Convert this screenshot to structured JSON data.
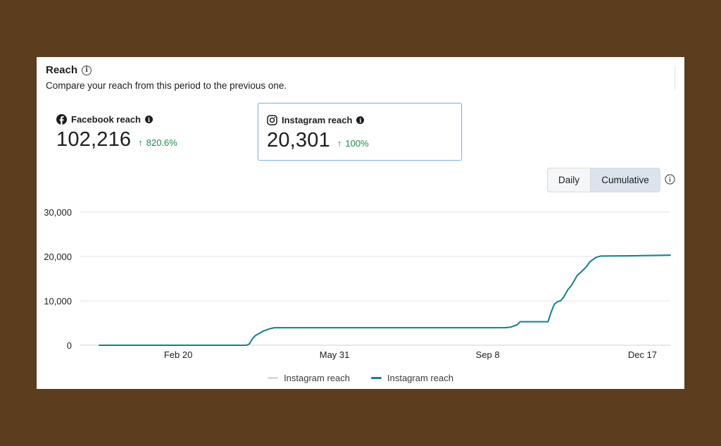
{
  "header": {
    "title": "Reach",
    "subtitle": "Compare your reach from this period to the previous one."
  },
  "metrics": {
    "facebook": {
      "label": "Facebook reach",
      "value": "102,216",
      "change": "820.6%",
      "icon": "facebook-icon"
    },
    "instagram": {
      "label": "Instagram reach",
      "value": "20,301",
      "change": "100%",
      "icon": "instagram-icon"
    }
  },
  "toggle": {
    "daily_label": "Daily",
    "cumulative_label": "Cumulative",
    "selected": "Cumulative"
  },
  "colors": {
    "line": "#13808a",
    "previous": "#d8dadf",
    "positive": "#1f8a4c",
    "selected_border": "#8ab3e8"
  },
  "chart_data": {
    "type": "line",
    "y_tick_labels": [
      "30,000",
      "20,000",
      "10,000",
      "0"
    ],
    "y_ticks": [
      30000,
      20000,
      10000,
      0
    ],
    "ylim": [
      0,
      30000
    ],
    "x_tick_labels": [
      "Feb 20",
      "May 31",
      "Sep 8",
      "Dec 17"
    ],
    "x_ticks": [
      51,
      152,
      251,
      351
    ],
    "xlim": [
      0,
      369
    ],
    "grid": true,
    "legend_position": "bottom",
    "series": [
      {
        "name": "Instagram reach",
        "role": "previous",
        "values": []
      },
      {
        "name": "Instagram reach",
        "role": "current",
        "points": [
          [
            0,
            0
          ],
          [
            95,
            0
          ],
          [
            97,
            300
          ],
          [
            99,
            1500
          ],
          [
            101,
            2200
          ],
          [
            103,
            2600
          ],
          [
            106,
            3200
          ],
          [
            110,
            3700
          ],
          [
            113,
            3950
          ],
          [
            150,
            3950
          ],
          [
            200,
            3950
          ],
          [
            262,
            3950
          ],
          [
            266,
            4100
          ],
          [
            270,
            4600
          ],
          [
            272,
            5300
          ],
          [
            290,
            5300
          ],
          [
            292,
            7500
          ],
          [
            294,
            9200
          ],
          [
            296,
            9800
          ],
          [
            298,
            10000
          ],
          [
            300,
            10800
          ],
          [
            303,
            12600
          ],
          [
            305,
            13400
          ],
          [
            309,
            15800
          ],
          [
            312,
            16700
          ],
          [
            315,
            17800
          ],
          [
            317,
            18800
          ],
          [
            321,
            19800
          ],
          [
            324,
            20100
          ],
          [
            340,
            20150
          ],
          [
            369,
            20301
          ]
        ]
      }
    ]
  },
  "legend": {
    "items": [
      "Instagram reach",
      "Instagram reach"
    ]
  }
}
